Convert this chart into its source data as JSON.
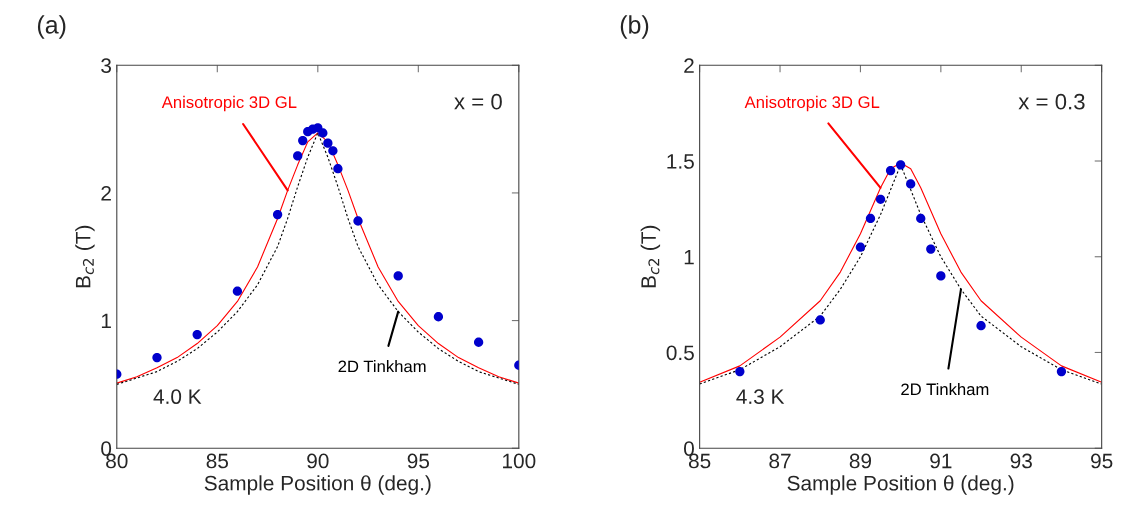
{
  "chart_data": [
    {
      "type": "scatter",
      "xlabel": "Sample Position θ (deg.)",
      "ylabel": "B$_{c2}$ (T)",
      "xlim": [
        80,
        100
      ],
      "ylim": [
        0,
        3
      ],
      "xticks": [
        80,
        85,
        90,
        95,
        100
      ],
      "yticks": [
        0,
        1,
        2,
        3
      ],
      "grid": false,
      "legend": false,
      "series": [
        {
          "type": "line",
          "color": "#ff0000",
          "line_style": "solid",
          "x": [
            80,
            81,
            82,
            83,
            84,
            85,
            86,
            87,
            88,
            88.5,
            89,
            89.5,
            90,
            90.5,
            91,
            91.5,
            92,
            93,
            94,
            95,
            96,
            97,
            98,
            99,
            100
          ],
          "values": [
            0.51,
            0.56,
            0.63,
            0.71,
            0.82,
            0.96,
            1.15,
            1.42,
            1.8,
            2.02,
            2.22,
            2.4,
            2.47,
            2.4,
            2.22,
            2.02,
            1.8,
            1.42,
            1.15,
            0.96,
            0.82,
            0.71,
            0.63,
            0.56,
            0.51
          ]
        },
        {
          "type": "line",
          "color": "#000000",
          "line_style": "dotted",
          "x": [
            80,
            81,
            82,
            83,
            84,
            85,
            86,
            87,
            88,
            88.5,
            89,
            89.5,
            90,
            90.5,
            91,
            91.5,
            92,
            93,
            94,
            95,
            96,
            97,
            98,
            99,
            100
          ],
          "values": [
            0.5,
            0.55,
            0.6,
            0.68,
            0.78,
            0.91,
            1.07,
            1.28,
            1.58,
            1.8,
            2.05,
            2.28,
            2.47,
            2.28,
            2.05,
            1.8,
            1.58,
            1.28,
            1.07,
            0.91,
            0.78,
            0.68,
            0.6,
            0.55,
            0.5
          ]
        },
        {
          "marker": "circle",
          "color": "#0000cc",
          "x": [
            80,
            82,
            84,
            86,
            88,
            89,
            89.25,
            89.5,
            89.75,
            90,
            90.25,
            90.5,
            90.75,
            91,
            92,
            94,
            96,
            98,
            100
          ],
          "values": [
            0.58,
            0.71,
            0.89,
            1.23,
            1.83,
            2.29,
            2.41,
            2.48,
            2.5,
            2.51,
            2.47,
            2.39,
            2.33,
            2.19,
            1.78,
            1.35,
            1.03,
            0.83,
            0.65
          ]
        }
      ],
      "annotations": [
        "(a)",
        "x = 0",
        "4.0 K",
        {
          "text": "Anisotropic 3D GL",
          "x": 88.5,
          "y": 2.02
        },
        {
          "text": "2D Tinkham",
          "x": 94,
          "y": 1.07
        }
      ]
    },
    {
      "type": "scatter",
      "xlabel": "Sample Position θ (deg.)",
      "ylabel": "B$_{c2}$ (T)",
      "xlim": [
        85,
        95
      ],
      "ylim": [
        0,
        2
      ],
      "xticks": [
        85,
        87,
        89,
        91,
        93,
        95
      ],
      "yticks": [
        0,
        0.5,
        1,
        1.5,
        2
      ],
      "grid": false,
      "legend": false,
      "series": [
        {
          "type": "line",
          "color": "#ff0000",
          "line_style": "solid",
          "x": [
            85,
            86,
            87,
            88,
            88.5,
            89,
            89.5,
            89.75,
            90,
            90.25,
            90.5,
            91,
            91.5,
            92,
            93,
            94,
            95
          ],
          "values": [
            0.345,
            0.43,
            0.58,
            0.77,
            0.92,
            1.12,
            1.36,
            1.46,
            1.49,
            1.46,
            1.36,
            1.12,
            0.92,
            0.77,
            0.58,
            0.43,
            0.345
          ]
        },
        {
          "type": "line",
          "color": "#000000",
          "line_style": "dotted",
          "x": [
            85,
            86,
            87,
            88,
            88.5,
            89,
            89.5,
            90,
            90.5,
            91,
            91.5,
            92,
            93,
            94,
            95
          ],
          "values": [
            0.335,
            0.41,
            0.53,
            0.69,
            0.83,
            1.0,
            1.22,
            1.48,
            1.22,
            1.0,
            0.83,
            0.69,
            0.53,
            0.41,
            0.335
          ]
        },
        {
          "marker": "circle",
          "color": "#0000cc",
          "x": [
            86,
            88,
            89,
            89.25,
            89.5,
            89.75,
            90,
            90.25,
            90.5,
            90.75,
            91,
            92,
            94
          ],
          "values": [
            0.4,
            0.67,
            1.05,
            1.2,
            1.3,
            1.45,
            1.48,
            1.38,
            1.2,
            1.04,
            0.9,
            0.64,
            0.4
          ]
        }
      ],
      "annotations": [
        "(b)",
        "x = 0.3",
        "4.3 K",
        {
          "text": "Anisotropic 3D GL",
          "x": 89.5,
          "y": 1.36
        },
        {
          "text": "2D Tinkham",
          "x": 91.5,
          "y": 0.83
        }
      ]
    }
  ]
}
